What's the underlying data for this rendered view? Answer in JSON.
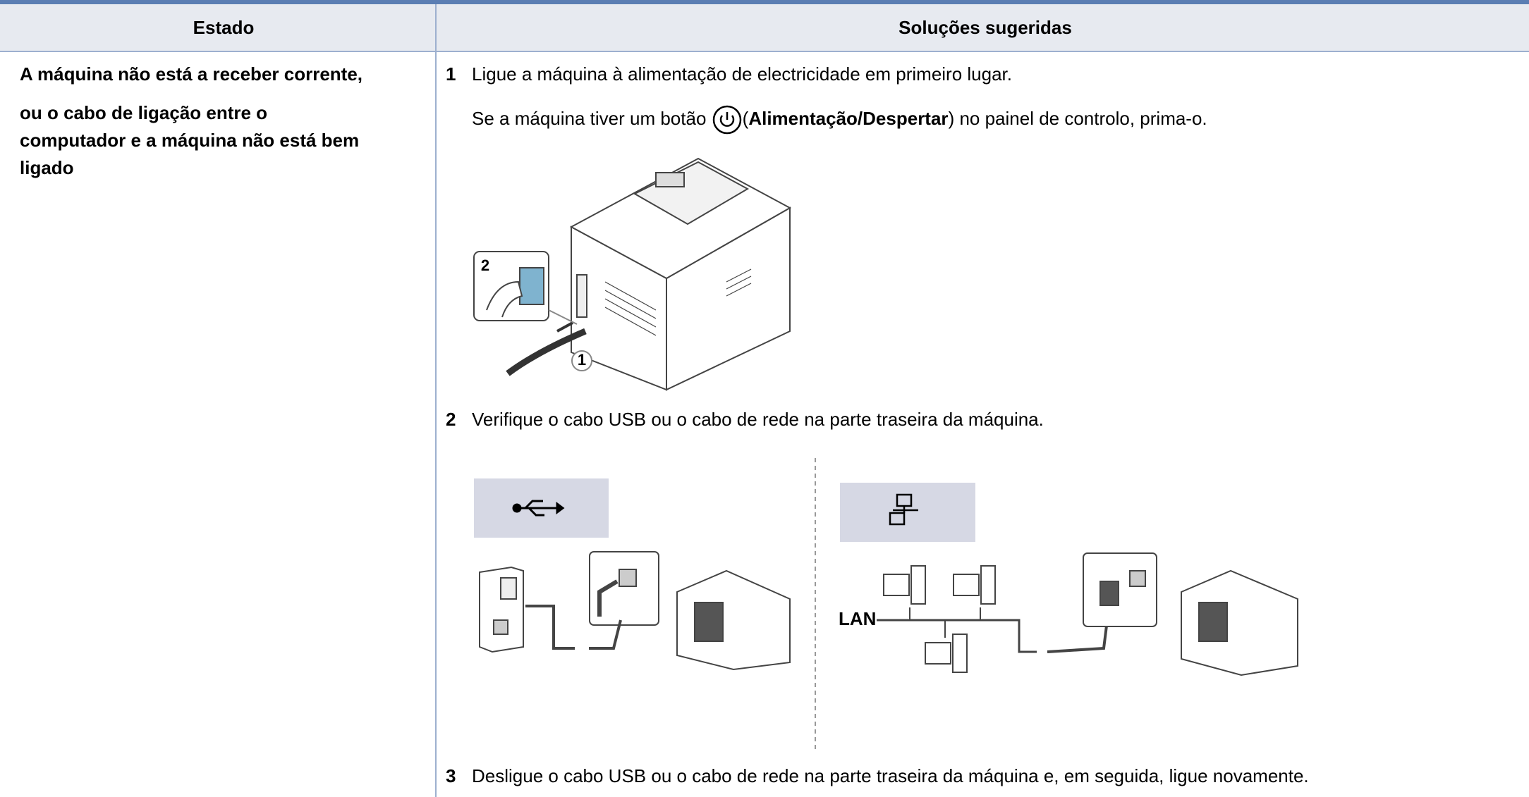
{
  "table": {
    "headers": [
      "Estado",
      "Soluções sugeridas"
    ],
    "status": [
      "A máquina não está a receber corrente,",
      "ou o cabo de ligação entre o",
      "computador e a máquina não está bem",
      "ligado"
    ],
    "steps": [
      {
        "number": "1",
        "text": "Ligue a máquina à alimentação de electricidade em primeiro lugar.",
        "note": [
          "Se a máquina tiver um botão",
          "(",
          "Alimentação/Despertar",
          ") no painel de controlo, prima-o."
        ]
      },
      {
        "number": "2",
        "text": "Verifique o cabo USB ou o cabo de rede na parte traseira da máquina."
      },
      {
        "number": "3",
        "text": "Desligue o cabo USB ou o cabo de rede na parte traseira da máquina e, em seguida, ligue novamente."
      }
    ],
    "figures": {
      "printer_callouts": [
        "2",
        "1"
      ],
      "network_label": "LAN"
    }
  }
}
